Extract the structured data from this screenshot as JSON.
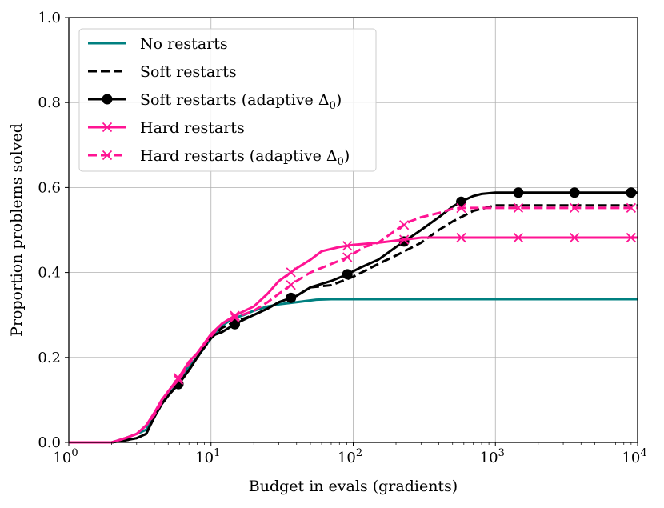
{
  "chart_data": {
    "type": "line",
    "title": "",
    "xlabel": "Budget in evals (gradients)",
    "ylabel": "Proportion problems solved",
    "xscale": "log",
    "xlim": [
      1,
      10000
    ],
    "ylim": [
      0.0,
      1.0
    ],
    "grid": true,
    "legend_position": "top-left",
    "x_ticks": [
      {
        "value": 1,
        "base": "10",
        "exp": "0"
      },
      {
        "value": 10,
        "base": "10",
        "exp": "1"
      },
      {
        "value": 100,
        "base": "10",
        "exp": "2"
      },
      {
        "value": 1000,
        "base": "10",
        "exp": "3"
      },
      {
        "value": 10000,
        "base": "10",
        "exp": "4"
      }
    ],
    "y_ticks": [
      {
        "value": 0.0,
        "label": "0.0"
      },
      {
        "value": 0.2,
        "label": "0.2"
      },
      {
        "value": 0.4,
        "label": "0.4"
      },
      {
        "value": 0.6,
        "label": "0.6"
      },
      {
        "value": 0.8,
        "label": "0.8"
      },
      {
        "value": 1.0,
        "label": "1.0"
      }
    ],
    "series": [
      {
        "name": "No restarts",
        "name_prefix": "No restarts",
        "name_symbol": "",
        "name_suffix": "",
        "color": "#008080",
        "dash": "solid",
        "marker": "none",
        "x": [
          1,
          2,
          2.5,
          3,
          3.5,
          4,
          4.5,
          5,
          6,
          7,
          8,
          10,
          12,
          14,
          17,
          20,
          25,
          30,
          40,
          55,
          70,
          100,
          10000
        ],
        "y": [
          0,
          0,
          0.01,
          0.02,
          0.03,
          0.06,
          0.09,
          0.11,
          0.145,
          0.18,
          0.2,
          0.245,
          0.275,
          0.29,
          0.3,
          0.31,
          0.32,
          0.325,
          0.33,
          0.336,
          0.337,
          0.337,
          0.337
        ]
      },
      {
        "name": "Soft restarts",
        "name_prefix": "Soft restarts",
        "name_symbol": "",
        "name_suffix": "",
        "color": "#000000",
        "dash": "dashed",
        "marker": "none",
        "x": [
          1,
          2,
          2.5,
          3,
          3.5,
          4,
          4.5,
          5,
          6,
          7,
          8,
          10,
          12,
          15,
          20,
          25,
          30,
          40,
          50,
          70,
          100,
          150,
          200,
          300,
          400,
          500,
          700,
          1000,
          10000
        ],
        "y": [
          0,
          0,
          0.005,
          0.01,
          0.02,
          0.06,
          0.09,
          0.11,
          0.14,
          0.17,
          0.2,
          0.245,
          0.27,
          0.285,
          0.3,
          0.315,
          0.33,
          0.345,
          0.365,
          0.37,
          0.39,
          0.42,
          0.44,
          0.47,
          0.5,
          0.52,
          0.545,
          0.558,
          0.558
        ]
      },
      {
        "name": "Soft restarts (adaptive Δ0)",
        "name_prefix": "Soft restarts (adaptive ",
        "name_symbol": "Δ",
        "name_suffix": ")",
        "color": "#000000",
        "dash": "solid",
        "marker": "circle",
        "marker_x": [
          5.9,
          14.7,
          36.5,
          91,
          228,
          575,
          1450,
          3600,
          9000
        ],
        "x": [
          1,
          2,
          2.5,
          3,
          3.5,
          4,
          4.5,
          5,
          6,
          7,
          8,
          10,
          12,
          15,
          20,
          25,
          30,
          40,
          50,
          70,
          90,
          110,
          150,
          200,
          300,
          400,
          500,
          600,
          700,
          800,
          1000,
          10000
        ],
        "y": [
          0,
          0,
          0.005,
          0.01,
          0.02,
          0.06,
          0.09,
          0.11,
          0.14,
          0.17,
          0.2,
          0.25,
          0.26,
          0.28,
          0.3,
          0.315,
          0.33,
          0.345,
          0.365,
          0.38,
          0.395,
          0.41,
          0.43,
          0.46,
          0.5,
          0.53,
          0.555,
          0.57,
          0.58,
          0.585,
          0.588,
          0.588
        ]
      },
      {
        "name": "Hard restarts",
        "name_prefix": "Hard restarts",
        "name_symbol": "",
        "name_suffix": "",
        "color": "#ff1493",
        "dash": "solid",
        "marker": "x",
        "marker_x": [
          5.9,
          14.7,
          36.5,
          91,
          228,
          575,
          1450,
          3600,
          9000
        ],
        "x": [
          1,
          2,
          2.5,
          3,
          3.5,
          4,
          4.5,
          5,
          6,
          7,
          8,
          10,
          12,
          15,
          20,
          25,
          30,
          40,
          50,
          60,
          80,
          100,
          150,
          200,
          300,
          10000
        ],
        "y": [
          0,
          0,
          0.01,
          0.02,
          0.04,
          0.07,
          0.1,
          0.12,
          0.155,
          0.19,
          0.21,
          0.255,
          0.28,
          0.3,
          0.32,
          0.35,
          0.38,
          0.41,
          0.43,
          0.45,
          0.46,
          0.465,
          0.47,
          0.475,
          0.482,
          0.482
        ]
      },
      {
        "name": "Hard restarts (adaptive Δ0)",
        "name_prefix": "Hard restarts (adaptive ",
        "name_symbol": "Δ",
        "name_suffix": ")",
        "color": "#ff1493",
        "dash": "dashed",
        "marker": "x",
        "marker_x": [
          5.9,
          14.7,
          36.5,
          91,
          228,
          575,
          1450,
          3600,
          9000
        ],
        "x": [
          1,
          2,
          2.5,
          3,
          3.5,
          4,
          4.5,
          5,
          6,
          7,
          8,
          10,
          12,
          15,
          20,
          25,
          30,
          40,
          50,
          70,
          90,
          120,
          150,
          200,
          250,
          300,
          400,
          500,
          600,
          10000
        ],
        "y": [
          0,
          0,
          0.01,
          0.02,
          0.04,
          0.065,
          0.095,
          0.12,
          0.15,
          0.185,
          0.21,
          0.25,
          0.28,
          0.295,
          0.31,
          0.33,
          0.35,
          0.38,
          0.4,
          0.42,
          0.435,
          0.46,
          0.47,
          0.5,
          0.52,
          0.53,
          0.54,
          0.55,
          0.552,
          0.552
        ]
      }
    ]
  }
}
